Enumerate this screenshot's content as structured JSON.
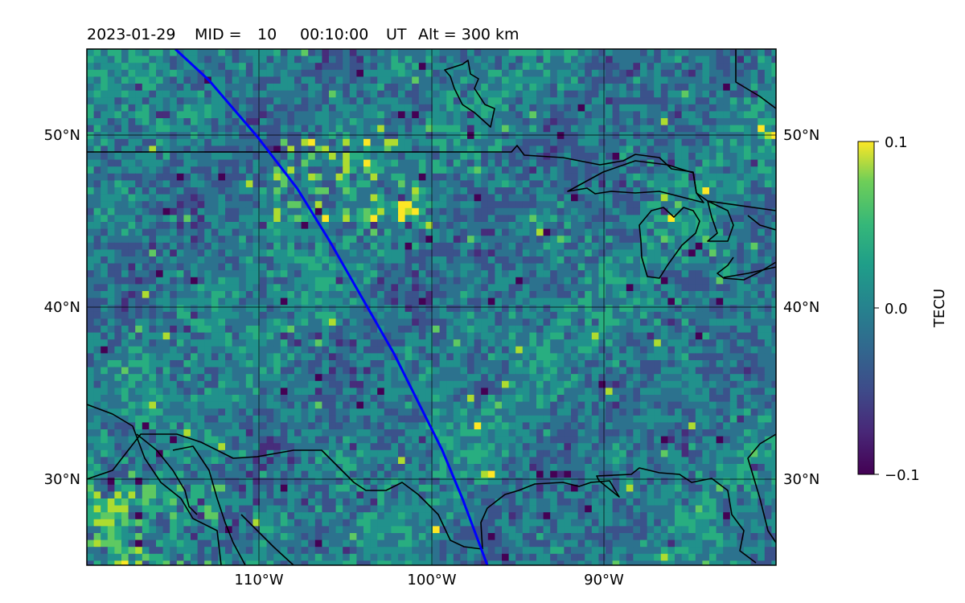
{
  "title": {
    "date": "2023-01-29",
    "mid_label": "MID =",
    "mid_value": "10",
    "time": "00:10:00",
    "time_unit": "UT",
    "alt_label": "Alt = 300 km"
  },
  "map": {
    "lon_range": [
      -120,
      -80
    ],
    "lat_range": [
      25,
      55
    ],
    "lon_ticks": [
      "110°W",
      "100°W",
      "90°W"
    ],
    "lat_ticks_left": [
      "50°N",
      "40°N",
      "30°N"
    ],
    "lat_ticks_right": [
      "50°N",
      "40°N",
      "30°N"
    ],
    "grid": true,
    "track_color": "#0000ff"
  },
  "colorbar": {
    "label": "TECU",
    "ticks": [
      "0.1",
      "0.0",
      "−0.1"
    ],
    "range": [
      -0.1,
      0.1
    ],
    "colormap": "viridis"
  }
}
